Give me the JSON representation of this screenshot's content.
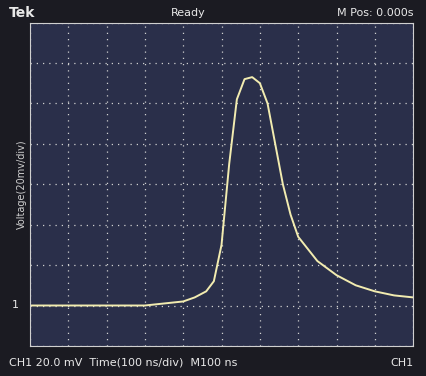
{
  "chart_data": {
    "type": "line",
    "header": [
      "Tek",
      "Ready",
      "M Pos: 0.000s"
    ],
    "y_label": "Voltage(20mv/div)",
    "footer": "CH1 20.0 mV  Time(100 ns/div)  M100 ns",
    "channel": "CH1",
    "ground_marker": "1",
    "x": [
      0,
      100,
      200,
      300,
      350,
      400,
      430,
      460,
      480,
      500,
      520,
      540,
      560,
      580,
      600,
      620,
      640,
      660,
      680,
      700,
      750,
      800,
      850,
      900,
      950,
      1000
    ],
    "values": [
      0,
      0,
      0,
      0,
      1,
      2,
      4,
      7,
      12,
      30,
      70,
      102,
      112,
      113,
      110,
      100,
      80,
      60,
      45,
      34,
      22,
      15,
      10,
      7,
      5,
      4
    ],
    "color": "#f2ecb0",
    "xlim": [
      0,
      1000
    ],
    "ylim": [
      -20,
      140
    ],
    "xticks": [
      0,
      100,
      200,
      300,
      400,
      500,
      600,
      700,
      800,
      900,
      1000
    ],
    "yticks": [
      -20,
      0,
      20,
      40,
      60,
      80,
      100,
      120,
      140
    ],
    "grid": true,
    "tick_labels": false
  }
}
